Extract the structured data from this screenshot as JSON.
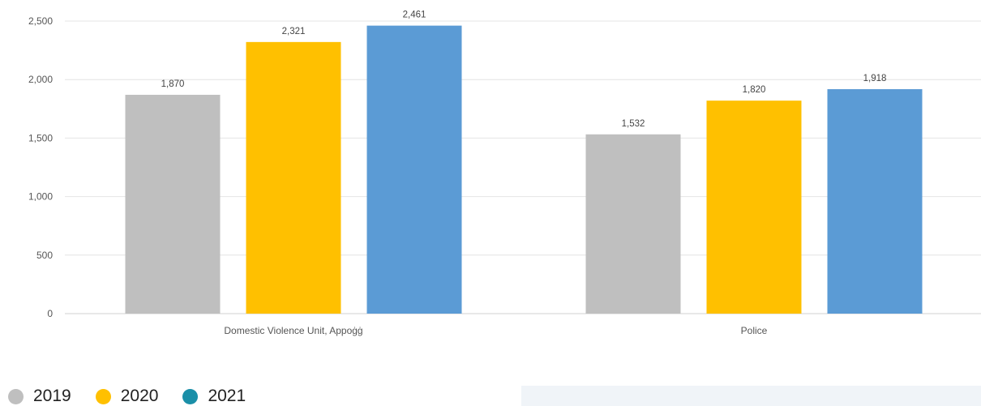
{
  "chart_data": {
    "type": "bar",
    "categories": [
      "Domestic Violence Unit, Appoġġ",
      "Police"
    ],
    "series": [
      {
        "name": "2019",
        "values": [
          1870,
          1532
        ],
        "value_labels": [
          "1,870",
          "1,532"
        ],
        "color": "#bfbfbf"
      },
      {
        "name": "2020",
        "values": [
          2321,
          1820
        ],
        "value_labels": [
          "2,321",
          "1,820"
        ],
        "color": "#ffc000"
      },
      {
        "name": "2021",
        "values": [
          2461,
          1918
        ],
        "value_labels": [
          "2,461",
          "1,918"
        ],
        "color": "#5b9bd5"
      }
    ],
    "ylim": [
      0,
      2500
    ],
    "yticks": [
      0,
      500,
      1000,
      1500,
      2000,
      2500
    ],
    "ytick_labels": [
      "0",
      "500",
      "1,000",
      "1,500",
      "2,000",
      "2,500"
    ],
    "grid": true,
    "legend_position": "bottom-left"
  },
  "legend": [
    {
      "label": "2019",
      "color": "#bfbfbf"
    },
    {
      "label": "2020",
      "color": "#ffc000"
    },
    {
      "label": "2021",
      "color": "#1a8fa8"
    }
  ]
}
